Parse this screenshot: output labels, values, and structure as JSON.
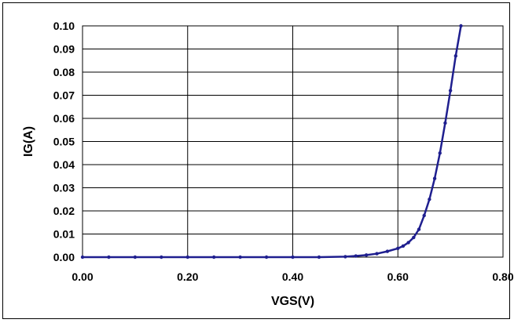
{
  "chart_data": {
    "type": "line",
    "title": "",
    "xlabel": "VGS(V)",
    "ylabel": "IG(A)",
    "xlim": [
      0,
      0.8
    ],
    "ylim": [
      0,
      0.1
    ],
    "x_ticks": [
      "0.00",
      "0.20",
      "0.40",
      "0.60",
      "0.80"
    ],
    "y_ticks": [
      "0.00",
      "0.01",
      "0.02",
      "0.03",
      "0.04",
      "0.05",
      "0.06",
      "0.07",
      "0.08",
      "0.09",
      "0.10"
    ],
    "grid": true,
    "legend": "none",
    "series_color": "#1f1f8f",
    "series": [
      {
        "x": [
          0.0,
          0.05,
          0.1,
          0.15,
          0.2,
          0.25,
          0.3,
          0.35,
          0.4,
          0.45,
          0.5,
          0.52,
          0.54,
          0.56,
          0.58,
          0.6,
          0.61,
          0.62,
          0.63,
          0.64,
          0.65,
          0.66,
          0.67,
          0.68,
          0.69,
          0.7,
          0.71,
          0.72
        ],
        "values": [
          0.0,
          0.0,
          0.0,
          0.0,
          0.0,
          0.0,
          0.0,
          0.0,
          0.0,
          0.0,
          0.0002,
          0.0005,
          0.0009,
          0.0015,
          0.0025,
          0.0038,
          0.0048,
          0.0063,
          0.0085,
          0.012,
          0.018,
          0.025,
          0.034,
          0.045,
          0.058,
          0.072,
          0.087,
          0.1
        ]
      }
    ]
  }
}
